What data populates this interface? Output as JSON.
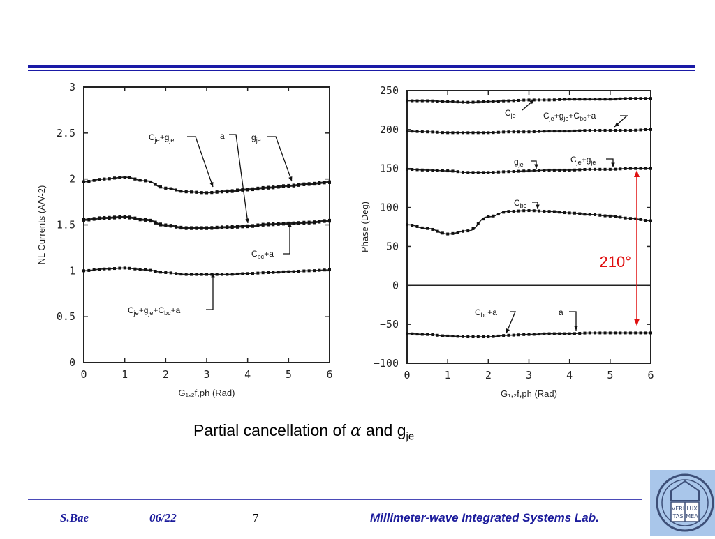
{
  "caption": {
    "text": "Partial cancellation of ",
    "alpha": "α",
    "and": " and g",
    "sub": "je"
  },
  "footer": {
    "author": "S.Bae",
    "date": "06/22",
    "page": "7",
    "lab": "Millimeter-wave Integrated Systems Lab."
  },
  "colors": {
    "rule": "#1a1aa6",
    "footer_text": "#1c1c9c",
    "annotation_red": "#e01010",
    "logo_bg": "#a9c6ea"
  },
  "logo": {
    "text": [
      "VERI",
      "LUX",
      "TAS",
      "MEA"
    ]
  },
  "chart_data": [
    {
      "type": "line",
      "xlabel": "G₁,₂f,ph (Rad)",
      "ylabel": "NL Currents (A/V-2)",
      "xlim": [
        0,
        6
      ],
      "ylim": [
        0,
        3
      ],
      "xticks": [
        "0",
        "1",
        "2",
        "3",
        "4",
        "5",
        "6"
      ],
      "yticks": [
        "0",
        "0.5",
        "1",
        "1.5",
        "2",
        "2.5",
        "3"
      ],
      "x": [
        0,
        0.5,
        1,
        1.5,
        2,
        2.5,
        3,
        3.5,
        4,
        4.5,
        5,
        5.5,
        6
      ],
      "series": [
        {
          "name": "Cje+gje",
          "values": [
            1.97,
            2.0,
            2.02,
            1.98,
            1.9,
            1.86,
            1.85,
            1.86,
            1.88,
            1.9,
            1.92,
            1.94,
            1.96
          ]
        },
        {
          "name": "gje",
          "values": [
            1.97,
            2.0,
            2.02,
            1.98,
            1.9,
            1.86,
            1.85,
            1.87,
            1.89,
            1.91,
            1.93,
            1.95,
            1.97
          ]
        },
        {
          "name": "a",
          "values": [
            1.56,
            1.58,
            1.59,
            1.56,
            1.5,
            1.47,
            1.47,
            1.48,
            1.49,
            1.51,
            1.52,
            1.53,
            1.55
          ]
        },
        {
          "name": "Cbc+a",
          "values": [
            1.55,
            1.57,
            1.58,
            1.55,
            1.49,
            1.46,
            1.46,
            1.47,
            1.48,
            1.5,
            1.51,
            1.52,
            1.54
          ]
        },
        {
          "name": "Cje+gje+Cbc+a",
          "values": [
            1.0,
            1.02,
            1.03,
            1.01,
            0.98,
            0.96,
            0.96,
            0.96,
            0.97,
            0.98,
            0.99,
            1.0,
            1.01
          ]
        }
      ],
      "labels": [
        {
          "text": "Cje+gje",
          "main": "C",
          "s1": "je",
          "mid": "+g",
          "s2": "je"
        },
        {
          "text": "a",
          "main": "a"
        },
        {
          "text": "gje",
          "main": "g",
          "s1": "je"
        },
        {
          "text": "Cbc+a",
          "main": "C",
          "s1": "bc",
          "mid": "+a"
        },
        {
          "text": "Cje+gje+Cbc+a",
          "main": "C",
          "s1": "je",
          "mid": "+g",
          "s2": "je",
          "mid2": "+C",
          "s3": "bc",
          "end": "+a"
        }
      ]
    },
    {
      "type": "line",
      "xlabel": "G₁,₂f,ph (Rad)",
      "ylabel": "Phase (Deg)",
      "xlim": [
        0,
        6
      ],
      "ylim": [
        -100,
        250
      ],
      "xticks": [
        "0",
        "1",
        "2",
        "3",
        "4",
        "5",
        "6"
      ],
      "yticks": [
        "−100",
        "−50",
        "0",
        "50",
        "100",
        "150",
        "200",
        "250"
      ],
      "x": [
        0,
        0.5,
        1,
        1.5,
        2,
        2.5,
        3,
        3.5,
        4,
        4.5,
        5,
        5.5,
        6
      ],
      "series": [
        {
          "name": "Cje",
          "values": [
            237,
            237,
            236,
            235,
            236,
            237,
            238,
            238,
            239,
            239,
            239,
            240,
            240
          ]
        },
        {
          "name": "Cje+gje+Cbc+a",
          "values": [
            198,
            197,
            196,
            196,
            196,
            197,
            197,
            198,
            198,
            199,
            199,
            199,
            200
          ]
        },
        {
          "name": "Cje+gje",
          "values": [
            149,
            148,
            147,
            145,
            145,
            146,
            147,
            148,
            148,
            149,
            149,
            150,
            150
          ]
        },
        {
          "name": "Cbc",
          "values": [
            78,
            73,
            66,
            70,
            88,
            95,
            96,
            95,
            93,
            91,
            89,
            86,
            83
          ]
        },
        {
          "name": "Cbc+a",
          "values": [
            -62,
            -63,
            -65,
            -66,
            -66,
            -64,
            -63,
            -62,
            -62,
            -61,
            -61,
            -61,
            -61
          ]
        }
      ],
      "zero_line": 0,
      "annotation": {
        "text": "210°",
        "from": -52,
        "to": 148
      }
    }
  ]
}
